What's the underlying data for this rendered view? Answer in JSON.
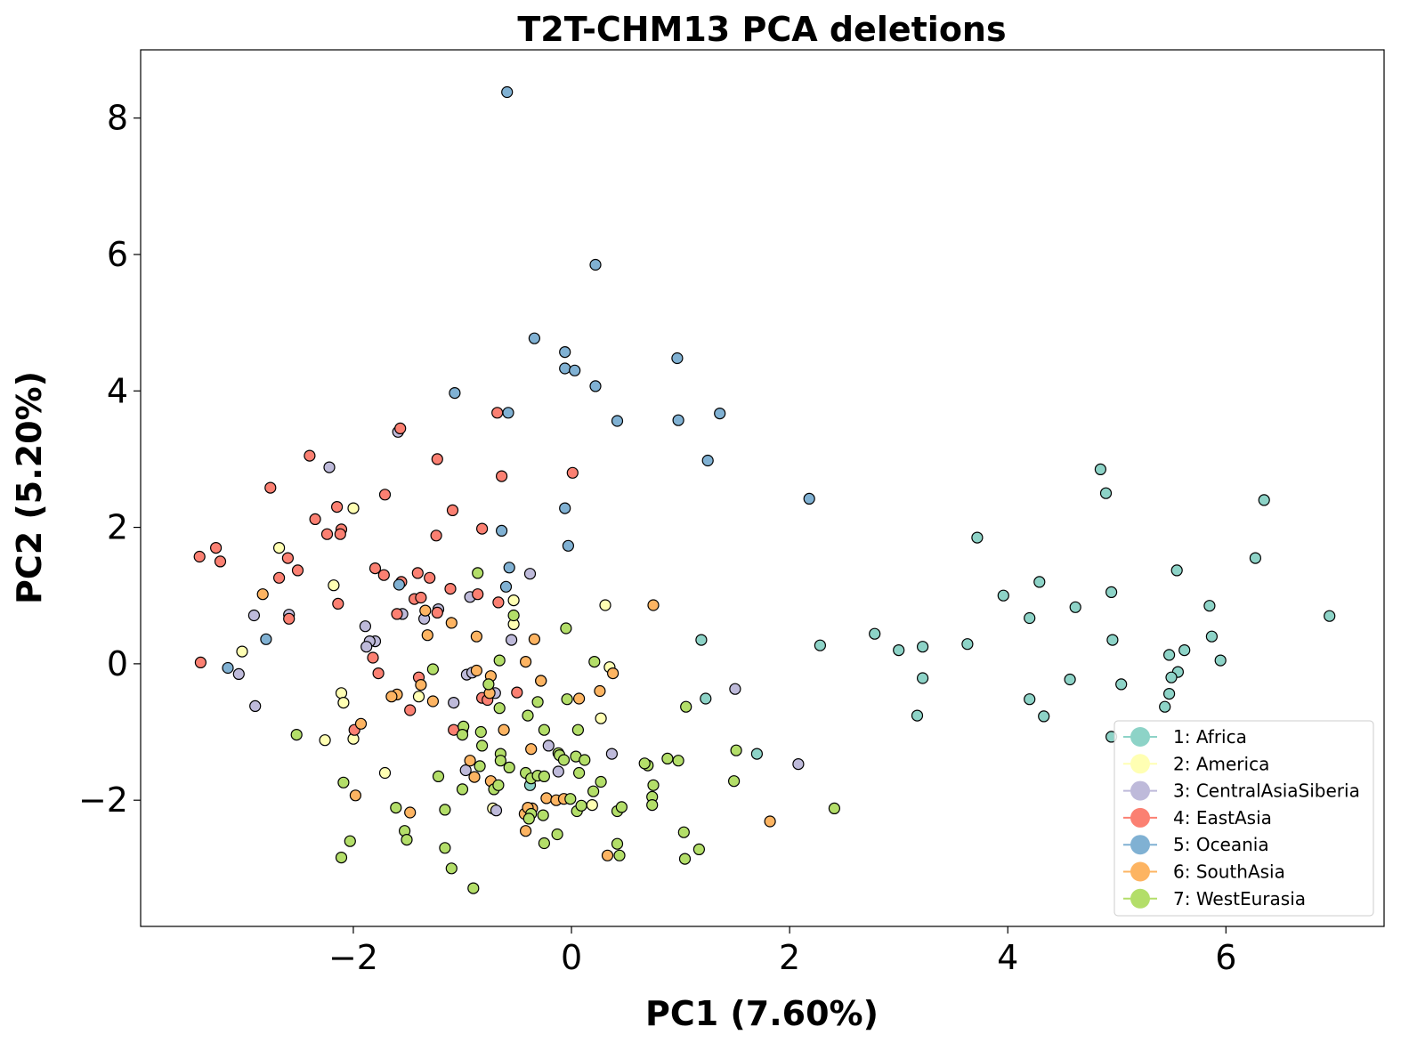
{
  "chart_data": {
    "type": "scatter",
    "title": "T2T-CHM13 PCA deletions",
    "xlabel": "PC1 (7.60%)",
    "ylabel": "PC2 (5.20%)",
    "xlim": [
      -3.95,
      7.45
    ],
    "ylim": [
      -3.85,
      9.0
    ],
    "xticks": [
      -2,
      0,
      2,
      4,
      6
    ],
    "yticks": [
      -2,
      0,
      2,
      4,
      6,
      8
    ],
    "xtick_labels": [
      "−2",
      "0",
      "2",
      "4",
      "6"
    ],
    "ytick_labels": [
      "−2",
      "0",
      "2",
      "4",
      "6",
      "8"
    ],
    "grid": false,
    "legend_position": "bottom-right",
    "marker_edge_color": "#000000",
    "series": [
      {
        "name": "1: Africa",
        "color": "#8dd3c7",
        "points": [
          [
            4.85,
            2.85
          ],
          [
            4.9,
            2.5
          ],
          [
            6.35,
            2.4
          ],
          [
            6.27,
            1.55
          ],
          [
            3.72,
            1.85
          ],
          [
            5.55,
            1.37
          ],
          [
            4.29,
            1.2
          ],
          [
            3.96,
            1.0
          ],
          [
            4.95,
            1.05
          ],
          [
            4.2,
            0.67
          ],
          [
            4.62,
            0.83
          ],
          [
            5.85,
            0.85
          ],
          [
            6.95,
            0.7
          ],
          [
            5.87,
            0.4
          ],
          [
            5.95,
            0.05
          ],
          [
            5.48,
            0.13
          ],
          [
            5.62,
            0.2
          ],
          [
            4.96,
            0.35
          ],
          [
            2.78,
            0.44
          ],
          [
            2.28,
            0.27
          ],
          [
            3.0,
            0.2
          ],
          [
            3.22,
            0.25
          ],
          [
            3.63,
            0.29
          ],
          [
            1.19,
            0.35
          ],
          [
            5.56,
            -0.12
          ],
          [
            5.5,
            -0.2
          ],
          [
            5.04,
            -0.3
          ],
          [
            4.57,
            -0.23
          ],
          [
            3.22,
            -0.21
          ],
          [
            5.48,
            -0.44
          ],
          [
            4.2,
            -0.52
          ],
          [
            5.44,
            -0.63
          ],
          [
            4.33,
            -0.77
          ],
          [
            3.17,
            -0.76
          ],
          [
            4.95,
            -1.07
          ],
          [
            1.23,
            -0.51
          ],
          [
            1.7,
            -1.32
          ],
          [
            -0.38,
            -1.78
          ]
        ]
      },
      {
        "name": "2: America",
        "color": "#ffffb3",
        "points": [
          [
            -2.0,
            2.28
          ],
          [
            -2.68,
            1.7
          ],
          [
            -2.18,
            1.15
          ],
          [
            -0.53,
            0.93
          ],
          [
            -0.53,
            0.58
          ],
          [
            0.31,
            0.86
          ],
          [
            -3.02,
            0.18
          ],
          [
            0.35,
            -0.05
          ],
          [
            -2.11,
            -0.43
          ],
          [
            -2.09,
            -0.57
          ],
          [
            -1.4,
            -0.48
          ],
          [
            0.27,
            -0.8
          ],
          [
            -2.26,
            -1.12
          ],
          [
            -2.0,
            -1.1
          ],
          [
            -1.71,
            -1.6
          ],
          [
            0.19,
            -2.07
          ],
          [
            -0.72,
            -2.12
          ]
        ]
      },
      {
        "name": "3: CentralAsiaSiberia",
        "color": "#bebada",
        "points": [
          [
            -1.59,
            3.4
          ],
          [
            -2.22,
            2.88
          ],
          [
            -1.55,
            0.73
          ],
          [
            -0.38,
            1.32
          ],
          [
            -0.93,
            0.98
          ],
          [
            -1.22,
            0.8
          ],
          [
            -1.35,
            0.66
          ],
          [
            -2.91,
            0.71
          ],
          [
            -2.59,
            0.72
          ],
          [
            -1.89,
            0.55
          ],
          [
            -1.8,
            0.33
          ],
          [
            -1.85,
            0.33
          ],
          [
            -1.88,
            0.25
          ],
          [
            -0.55,
            0.35
          ],
          [
            -3.05,
            -0.15
          ],
          [
            -2.9,
            -0.62
          ],
          [
            -0.96,
            -0.16
          ],
          [
            -0.91,
            -0.13
          ],
          [
            -1.08,
            -0.57
          ],
          [
            -0.7,
            -0.43
          ],
          [
            0.37,
            -1.32
          ],
          [
            -0.21,
            -1.2
          ],
          [
            -0.97,
            -1.56
          ],
          [
            -0.12,
            -1.58
          ],
          [
            1.5,
            -0.37
          ],
          [
            2.08,
            -1.47
          ],
          [
            -0.69,
            -2.15
          ]
        ]
      },
      {
        "name": "4: EastAsia",
        "color": "#fb8072",
        "points": [
          [
            -1.57,
            3.45
          ],
          [
            -0.68,
            3.68
          ],
          [
            -2.4,
            3.05
          ],
          [
            -1.23,
            3.0
          ],
          [
            -0.64,
            2.75
          ],
          [
            0.01,
            2.8
          ],
          [
            -2.76,
            2.58
          ],
          [
            -1.71,
            2.48
          ],
          [
            -2.15,
            2.3
          ],
          [
            -1.09,
            2.25
          ],
          [
            -2.35,
            2.12
          ],
          [
            -2.11,
            1.97
          ],
          [
            -2.24,
            1.9
          ],
          [
            -2.12,
            1.9
          ],
          [
            -1.24,
            1.88
          ],
          [
            -0.82,
            1.98
          ],
          [
            -3.41,
            1.57
          ],
          [
            -3.26,
            1.7
          ],
          [
            -3.22,
            1.5
          ],
          [
            -2.6,
            1.55
          ],
          [
            -2.51,
            1.37
          ],
          [
            -2.68,
            1.26
          ],
          [
            -1.8,
            1.4
          ],
          [
            -1.72,
            1.3
          ],
          [
            -1.41,
            1.33
          ],
          [
            -1.3,
            1.26
          ],
          [
            -1.56,
            1.2
          ],
          [
            -1.44,
            0.95
          ],
          [
            -1.38,
            0.97
          ],
          [
            -1.11,
            1.1
          ],
          [
            -0.86,
            1.02
          ],
          [
            -2.14,
            0.88
          ],
          [
            -0.67,
            0.9
          ],
          [
            -1.6,
            0.73
          ],
          [
            -2.59,
            0.66
          ],
          [
            -1.23,
            0.75
          ],
          [
            -1.82,
            0.09
          ],
          [
            -1.77,
            -0.14
          ],
          [
            -3.4,
            0.02
          ],
          [
            -1.4,
            -0.2
          ],
          [
            -0.82,
            -0.5
          ],
          [
            -0.5,
            -0.42
          ],
          [
            -1.48,
            -0.68
          ],
          [
            -1.0,
            -0.98
          ],
          [
            -1.08,
            -0.97
          ],
          [
            -1.99,
            -0.97
          ],
          [
            -0.77,
            -0.53
          ]
        ]
      },
      {
        "name": "5: Oceania",
        "color": "#80b1d3",
        "points": [
          [
            -0.59,
            8.38
          ],
          [
            0.22,
            5.85
          ],
          [
            -0.34,
            4.77
          ],
          [
            -0.06,
            4.57
          ],
          [
            0.97,
            4.48
          ],
          [
            -0.06,
            4.33
          ],
          [
            0.03,
            4.3
          ],
          [
            0.22,
            4.07
          ],
          [
            -1.07,
            3.97
          ],
          [
            -0.58,
            3.68
          ],
          [
            0.42,
            3.56
          ],
          [
            0.98,
            3.57
          ],
          [
            1.36,
            3.67
          ],
          [
            1.25,
            2.98
          ],
          [
            2.18,
            2.42
          ],
          [
            -0.06,
            2.28
          ],
          [
            -0.64,
            1.95
          ],
          [
            -0.03,
            1.73
          ],
          [
            -0.57,
            1.41
          ],
          [
            -1.58,
            1.16
          ],
          [
            -0.6,
            1.13
          ],
          [
            -2.8,
            0.36
          ],
          [
            -3.15,
            -0.06
          ]
        ]
      },
      {
        "name": "6: SouthAsia",
        "color": "#fdb462",
        "points": [
          [
            -2.83,
            1.02
          ],
          [
            -1.34,
            0.78
          ],
          [
            -1.32,
            0.42
          ],
          [
            -1.1,
            0.6
          ],
          [
            -0.87,
            0.4
          ],
          [
            -0.34,
            0.36
          ],
          [
            0.75,
            0.86
          ],
          [
            -0.42,
            0.03
          ],
          [
            -0.87,
            -0.1
          ],
          [
            -0.74,
            -0.18
          ],
          [
            -0.28,
            -0.25
          ],
          [
            -0.28,
            -0.25
          ],
          [
            -1.38,
            -0.31
          ],
          [
            -1.6,
            -0.45
          ],
          [
            -1.65,
            -0.48
          ],
          [
            -1.27,
            -0.55
          ],
          [
            -0.75,
            -0.43
          ],
          [
            0.26,
            -0.4
          ],
          [
            0.07,
            -0.51
          ],
          [
            0.38,
            -0.14
          ],
          [
            -1.93,
            -0.88
          ],
          [
            -0.62,
            -0.97
          ],
          [
            -0.93,
            -1.42
          ],
          [
            -0.37,
            -1.25
          ],
          [
            -0.89,
            -1.66
          ],
          [
            -0.74,
            -1.72
          ],
          [
            -1.98,
            -1.93
          ],
          [
            -0.23,
            -1.97
          ],
          [
            -0.14,
            -2.0
          ],
          [
            -0.07,
            -1.98
          ],
          [
            -1.48,
            -2.18
          ],
          [
            -0.36,
            -2.12
          ],
          [
            -0.43,
            -2.2
          ],
          [
            -0.4,
            -2.11
          ],
          [
            -0.42,
            -2.45
          ],
          [
            0.33,
            -2.81
          ],
          [
            1.82,
            -2.31
          ]
        ]
      },
      {
        "name": "7: WestEurasia",
        "color": "#b3de69",
        "points": [
          [
            -0.86,
            1.33
          ],
          [
            -0.53,
            0.71
          ],
          [
            -0.05,
            0.52
          ],
          [
            -0.66,
            0.05
          ],
          [
            0.21,
            0.03
          ],
          [
            -1.27,
            -0.08
          ],
          [
            -0.76,
            -0.3
          ],
          [
            -0.66,
            -0.65
          ],
          [
            -0.31,
            -0.56
          ],
          [
            -0.04,
            -0.52
          ],
          [
            -0.4,
            -0.76
          ],
          [
            -2.52,
            -1.04
          ],
          [
            -0.99,
            -0.92
          ],
          [
            -1.0,
            -1.04
          ],
          [
            -0.83,
            -1.0
          ],
          [
            -0.25,
            -0.97
          ],
          [
            0.06,
            -0.97
          ],
          [
            1.05,
            -0.63
          ],
          [
            -0.82,
            -1.2
          ],
          [
            -0.65,
            -1.32
          ],
          [
            -0.12,
            -1.31
          ],
          [
            -0.11,
            -1.34
          ],
          [
            0.04,
            -1.36
          ],
          [
            0.12,
            -1.41
          ],
          [
            -0.07,
            -1.41
          ],
          [
            0.7,
            -1.49
          ],
          [
            0.88,
            -1.39
          ],
          [
            0.98,
            -1.42
          ],
          [
            1.51,
            -1.27
          ],
          [
            0.67,
            -1.46
          ],
          [
            -0.84,
            -1.5
          ],
          [
            -0.65,
            -1.42
          ],
          [
            -1.22,
            -1.65
          ],
          [
            -0.42,
            -1.6
          ],
          [
            -0.37,
            -1.68
          ],
          [
            -0.31,
            -1.64
          ],
          [
            -0.25,
            -1.65
          ],
          [
            -0.57,
            -1.52
          ],
          [
            0.07,
            -1.6
          ],
          [
            -1.0,
            -1.84
          ],
          [
            -0.71,
            -1.84
          ],
          [
            -0.67,
            -1.78
          ],
          [
            -0.01,
            -1.98
          ],
          [
            0.2,
            -1.87
          ],
          [
            0.27,
            -1.73
          ],
          [
            0.75,
            -1.78
          ],
          [
            0.74,
            -1.95
          ],
          [
            -2.09,
            -1.74
          ],
          [
            -1.61,
            -2.11
          ],
          [
            -1.16,
            -2.14
          ],
          [
            -0.37,
            -2.2
          ],
          [
            -0.39,
            -2.27
          ],
          [
            -0.26,
            -2.22
          ],
          [
            0.05,
            -2.16
          ],
          [
            0.09,
            -2.08
          ],
          [
            0.42,
            -2.16
          ],
          [
            0.46,
            -2.1
          ],
          [
            0.74,
            -2.07
          ],
          [
            1.49,
            -1.72
          ],
          [
            2.41,
            -2.12
          ],
          [
            -1.53,
            -2.45
          ],
          [
            -1.51,
            -2.58
          ],
          [
            -0.13,
            -2.5
          ],
          [
            -0.25,
            -2.63
          ],
          [
            0.42,
            -2.64
          ],
          [
            0.44,
            -2.81
          ],
          [
            1.03,
            -2.47
          ],
          [
            1.17,
            -2.72
          ],
          [
            1.04,
            -2.86
          ],
          [
            -2.03,
            -2.6
          ],
          [
            -2.11,
            -2.84
          ],
          [
            -1.16,
            -2.7
          ],
          [
            -1.1,
            -3.0
          ],
          [
            -0.9,
            -3.29
          ]
        ]
      }
    ]
  }
}
